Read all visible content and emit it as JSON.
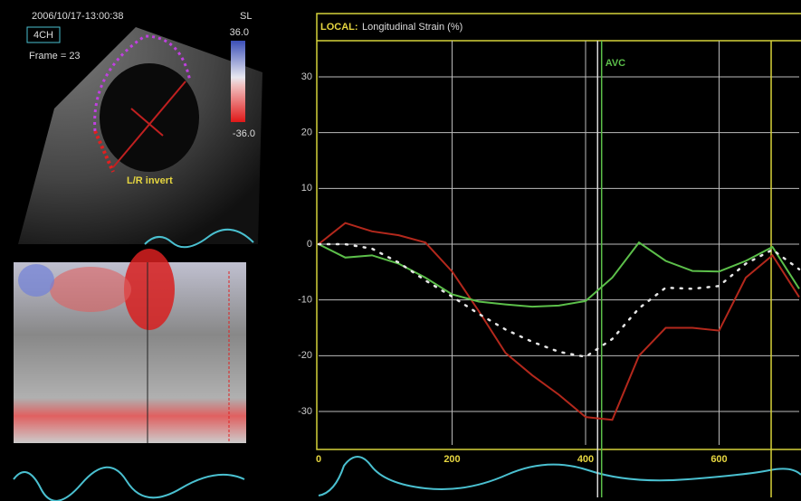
{
  "echo_panel": {
    "timestamp": "2006/10/17-13:00:38",
    "view": "4CH",
    "frame": "Frame = 23",
    "scale_name": "SL",
    "scale_max": "36.0",
    "scale_min": "-36.0",
    "note": "L/R invert"
  },
  "chart_data": {
    "type": "line",
    "title": "LOCAL:",
    "subtitle": "Longitudinal Strain (%)",
    "x": [
      0,
      40,
      80,
      120,
      160,
      200,
      240,
      280,
      320,
      360,
      400,
      440,
      480,
      520,
      560,
      600,
      640,
      680,
      720
    ],
    "series": [
      {
        "color": "#b3281c",
        "values": [
          0,
          3.8,
          2.3,
          1.6,
          0.3,
          -4.9,
          -12,
          -19.5,
          -23.5,
          -27,
          -31,
          -31.5,
          -20,
          -15,
          -15,
          -15.5,
          -6,
          -2,
          -9.5
        ]
      },
      {
        "color": "#5cbf4a",
        "values": [
          0,
          -2.4,
          -2,
          -3.5,
          -6,
          -9,
          -10.3,
          -10.8,
          -11.2,
          -11,
          -10.2,
          -6,
          0.3,
          -3,
          -4.8,
          -4.9,
          -3,
          -0.5,
          -8
        ]
      },
      {
        "color": "#e6e6e6",
        "dash": "dotted",
        "values": [
          0,
          0,
          -0.8,
          -3.3,
          -6.5,
          -9.4,
          -12.5,
          -15.3,
          -17.5,
          -19.3,
          -20.2,
          -17,
          -11.5,
          -7.8,
          -8,
          -7.5,
          -3.5,
          -1,
          -4.5
        ]
      }
    ],
    "xlim": [
      0,
      720
    ],
    "ylim": [
      -36,
      36
    ],
    "xticks": [
      0,
      200,
      400,
      600
    ],
    "yticks": [
      -30,
      -20,
      -10,
      0,
      10,
      20,
      30
    ],
    "grid": true,
    "vlines": [
      {
        "value": 418,
        "color": "#d8d8d8"
      },
      {
        "value": 424,
        "color": "#5cbf4a",
        "label": "AVC"
      },
      {
        "value": 678,
        "color": "#d6d23a"
      }
    ]
  }
}
